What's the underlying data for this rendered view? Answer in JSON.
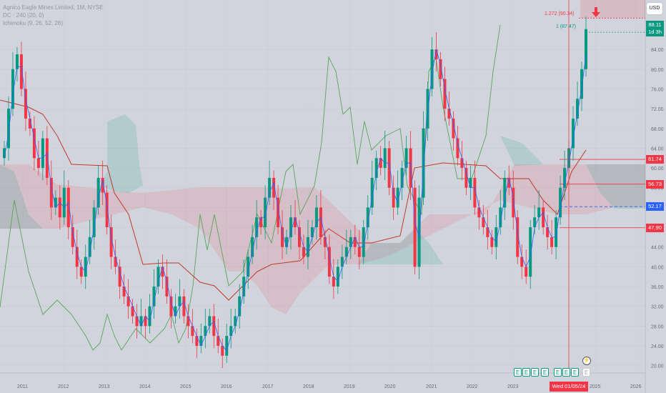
{
  "header": {
    "symbol_line": "Agnico Eagle Mines Limited, 1M, NYSE",
    "dc_line": "DC · 240 (20, 0)",
    "ichimoku_line": "Ichimoku (9, 26, 52, 26)"
  },
  "currency_button": "USD",
  "last_price": {
    "value": "88.11",
    "countdown": "1d 3h",
    "color": "#089981"
  },
  "fib_labels": {
    "upper": "1.272 (90.34)",
    "lower": "1 (87.47)"
  },
  "level_badges": [
    {
      "label": "61.74",
      "value": 61.74,
      "color": "#f23645"
    },
    {
      "label": "56.73",
      "value": 56.73,
      "color": "#f23645"
    },
    {
      "label": "52.17",
      "value": 52.17,
      "color": "#2962ff"
    },
    {
      "label": "47.90",
      "value": 47.9,
      "color": "#f23645"
    }
  ],
  "crosshair_date": "Wed 01/05/24",
  "events": {
    "earnings_past_icon": "E",
    "earnings_future_icon": "E",
    "flash_icon": "⚡",
    "arrow_icon": "arrow-down-icon"
  },
  "colors": {
    "up": "#089981",
    "down": "#f23645",
    "background": "#d1d4dc",
    "kijun": "#c0392b",
    "tenkan": "#2962ff",
    "lagging": "#5aa55a"
  },
  "chart_data": {
    "type": "candlestick",
    "title": "Agnico Eagle Mines Limited, 1M, NYSE",
    "xlabel": "",
    "ylabel": "USD",
    "ylim": [
      18.5,
      94
    ],
    "x_ticks": [
      "2011",
      "2012",
      "2013",
      "2014",
      "2015",
      "2016",
      "2017",
      "2018",
      "2019",
      "2020",
      "2021",
      "2022",
      "2023",
      "2025",
      "2026"
    ],
    "y_ticks": [
      "20.00",
      "24.00",
      "28.00",
      "32.00",
      "36.00",
      "40.00",
      "44.00",
      "48.00",
      "52.00",
      "56.00",
      "60.00",
      "64.00",
      "68.00",
      "72.00",
      "76.00",
      "80.00",
      "84.00"
    ],
    "close_path": [
      64,
      72,
      80,
      83,
      76,
      70,
      68,
      62,
      60,
      66,
      58,
      52,
      54,
      50,
      56,
      48,
      44,
      40,
      38,
      42,
      46,
      52,
      58,
      55,
      48,
      42,
      40,
      36,
      34,
      32,
      30,
      28,
      30,
      28,
      32,
      36,
      40,
      38,
      34,
      30,
      32,
      34,
      30,
      28,
      26,
      24,
      26,
      28,
      30,
      26,
      24,
      22,
      26,
      28,
      30,
      34,
      38,
      42,
      46,
      50,
      48,
      54,
      58,
      54,
      48,
      44,
      46,
      50,
      48,
      44,
      42,
      46,
      48,
      52,
      46,
      44,
      38,
      36,
      40,
      42,
      44,
      46,
      44,
      42,
      48,
      52,
      58,
      62,
      60,
      64,
      56,
      52,
      56,
      60,
      64,
      56,
      40,
      54,
      68,
      76,
      84,
      82,
      78,
      72,
      70,
      66,
      62,
      60,
      56,
      58,
      52,
      50,
      48,
      46,
      44,
      48,
      52,
      58,
      56,
      50,
      42,
      40,
      38,
      48,
      50,
      52,
      48,
      46,
      44,
      50,
      56,
      60,
      64,
      70,
      74,
      80,
      88.11
    ],
    "overlays": {
      "tenkan_sen": "blue line",
      "kijun_sen": "red line",
      "lagging_span": "green line",
      "cloud": "red/green shaded"
    },
    "fib_levels": [
      {
        "ratio": "1.272",
        "value": 90.34
      },
      {
        "ratio": "1",
        "value": 87.47
      }
    ],
    "horizontal_levels": [
      61.74,
      56.73,
      52.17,
      47.9
    ],
    "last_close": 88.11,
    "grid": true
  }
}
